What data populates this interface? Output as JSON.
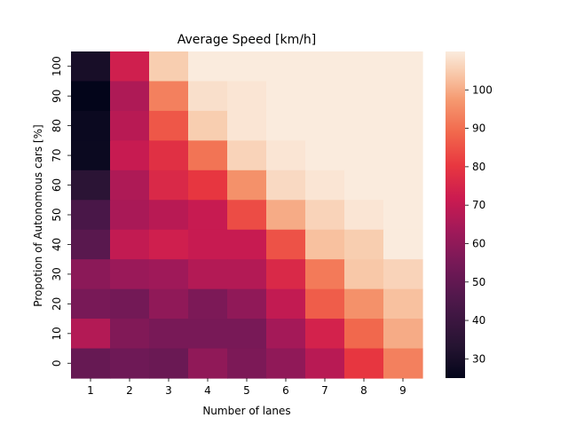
{
  "chart_data": {
    "type": "heatmap",
    "title": "Average Speed [km/h]",
    "xlabel": "Number of lanes",
    "ylabel": "Propotion of Autonomous cars [%]",
    "x_categories": [
      "1",
      "2",
      "3",
      "4",
      "5",
      "6",
      "7",
      "8",
      "9"
    ],
    "y_categories": [
      "100",
      "90",
      "80",
      "70",
      "60",
      "50",
      "40",
      "30",
      "20",
      "10",
      "0"
    ],
    "values": [
      [
        30,
        73,
        105,
        110,
        110,
        110,
        110,
        110,
        110
      ],
      [
        25,
        66,
        93,
        108,
        109,
        110,
        110,
        110,
        110
      ],
      [
        27,
        68,
        86,
        105,
        109,
        110,
        110,
        110,
        110
      ],
      [
        27,
        71,
        78,
        91,
        106,
        109,
        110,
        110,
        110
      ],
      [
        35,
        66,
        76,
        80,
        96,
        107,
        109,
        110,
        110
      ],
      [
        44,
        65,
        68,
        71,
        84,
        100,
        106,
        109,
        110
      ],
      [
        48,
        70,
        73,
        71,
        71,
        85,
        103,
        105,
        110
      ],
      [
        59,
        62,
        63,
        67,
        67,
        76,
        92,
        104,
        106
      ],
      [
        55,
        54,
        60,
        56,
        60,
        70,
        87,
        96,
        103
      ],
      [
        67,
        57,
        55,
        55,
        55,
        64,
        74,
        89,
        100
      ],
      [
        51,
        53,
        52,
        60,
        56,
        60,
        68,
        80,
        93
      ]
    ],
    "vmin": 25,
    "vmax": 110,
    "colorbar_ticks": [
      30,
      40,
      50,
      60,
      70,
      80,
      90,
      100
    ],
    "colormap": "rocket"
  }
}
